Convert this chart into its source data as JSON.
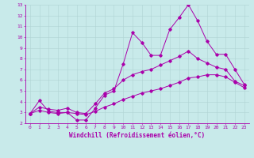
{
  "bg_color": "#c8eaea",
  "line_color": "#aa00aa",
  "grid_color": "#b0d4d4",
  "xlabel": "Windchill (Refroidissement éolien,°C)",
  "xlim": [
    -0.5,
    23.5
  ],
  "ylim": [
    2,
    13
  ],
  "xticks": [
    0,
    1,
    2,
    3,
    4,
    5,
    6,
    7,
    8,
    9,
    10,
    11,
    12,
    13,
    14,
    15,
    16,
    17,
    18,
    19,
    20,
    21,
    22,
    23
  ],
  "yticks": [
    2,
    3,
    4,
    5,
    6,
    7,
    8,
    9,
    10,
    11,
    12,
    13
  ],
  "line1_x": [
    0,
    1,
    2,
    3,
    4,
    5,
    6,
    7,
    8,
    9,
    10,
    11,
    12,
    13,
    14,
    15,
    16,
    17,
    18,
    19,
    20,
    21,
    22,
    23
  ],
  "line1_y": [
    2.9,
    4.1,
    3.1,
    3.0,
    3.0,
    2.3,
    2.3,
    3.4,
    4.6,
    5.0,
    7.5,
    10.4,
    9.5,
    8.3,
    8.3,
    10.7,
    11.8,
    13.0,
    11.5,
    9.6,
    8.4,
    8.4,
    7.0,
    5.6
  ],
  "line2_x": [
    0,
    1,
    2,
    3,
    4,
    5,
    6,
    7,
    8,
    9,
    10,
    11,
    12,
    13,
    14,
    15,
    16,
    17,
    18,
    19,
    20,
    21,
    22,
    23
  ],
  "line2_y": [
    2.9,
    3.5,
    3.3,
    3.2,
    3.4,
    3.0,
    2.9,
    3.8,
    4.8,
    5.2,
    6.0,
    6.5,
    6.8,
    7.0,
    7.4,
    7.8,
    8.2,
    8.7,
    8.0,
    7.6,
    7.2,
    7.0,
    5.9,
    5.5
  ],
  "line3_x": [
    0,
    1,
    2,
    3,
    4,
    5,
    6,
    7,
    8,
    9,
    10,
    11,
    12,
    13,
    14,
    15,
    16,
    17,
    18,
    19,
    20,
    21,
    22,
    23
  ],
  "line3_y": [
    2.9,
    3.2,
    3.0,
    2.9,
    3.0,
    2.9,
    2.8,
    3.1,
    3.5,
    3.8,
    4.2,
    4.5,
    4.8,
    5.0,
    5.2,
    5.5,
    5.8,
    6.2,
    6.3,
    6.5,
    6.5,
    6.3,
    5.8,
    5.3
  ],
  "tick_fontsize": 4.5,
  "label_fontsize": 5.5,
  "lw": 0.7,
  "ms": 1.8
}
